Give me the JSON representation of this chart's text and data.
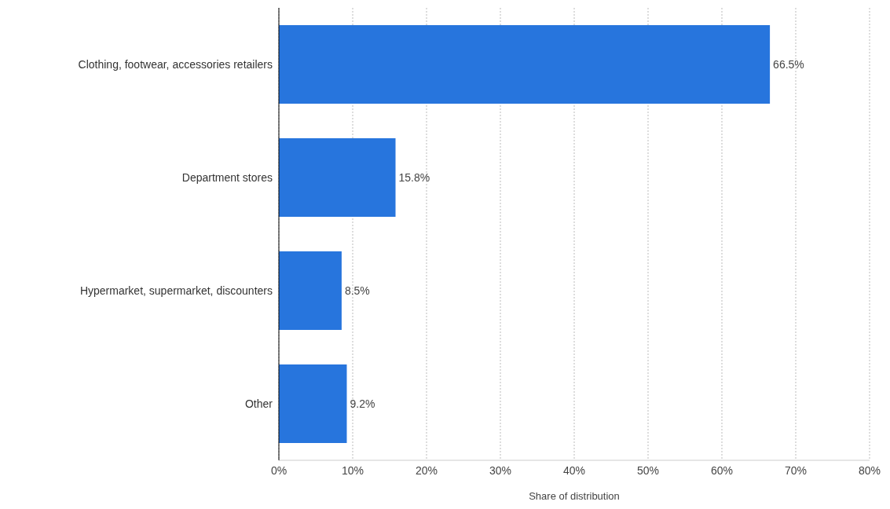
{
  "chart_data": {
    "type": "bar",
    "orientation": "horizontal",
    "xlabel": "Share of distribution",
    "categories": [
      "Clothing, footwear, accessories retailers",
      "Department stores",
      "Hypermarket, supermarket, discounters",
      "Other"
    ],
    "values": [
      66.5,
      15.8,
      8.5,
      9.2
    ],
    "value_labels": [
      "66.5%",
      "15.8%",
      "8.5%",
      "9.2%"
    ],
    "color": "#2775dd",
    "xlim": [
      0,
      80
    ],
    "xticks": [
      {
        "value": 0,
        "label": "0%"
      },
      {
        "value": 10,
        "label": "10%"
      },
      {
        "value": 20,
        "label": "20%"
      },
      {
        "value": 30,
        "label": "30%"
      },
      {
        "value": 40,
        "label": "40%"
      },
      {
        "value": 50,
        "label": "50%"
      },
      {
        "value": 60,
        "label": "60%"
      },
      {
        "value": 70,
        "label": "70%"
      },
      {
        "value": 80,
        "label": "80%"
      }
    ],
    "grid": "x"
  }
}
